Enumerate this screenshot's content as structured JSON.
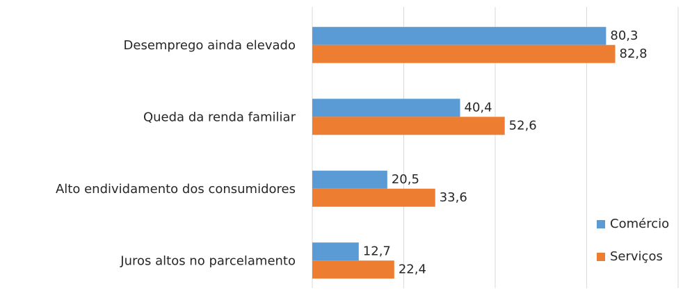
{
  "chart_data": {
    "type": "bar",
    "orientation": "horizontal",
    "categories": [
      "Desemprego ainda elevado",
      "Queda da renda familiar",
      "Alto endividamento dos consumidores",
      "Juros altos no parcelamento"
    ],
    "series": [
      {
        "name": "Comércio",
        "color": "#5b9bd5",
        "values": [
          80.3,
          40.4,
          20.5,
          12.7
        ],
        "value_labels": [
          "80,3",
          "40,4",
          "20,5",
          "12,7"
        ]
      },
      {
        "name": "Serviços",
        "color": "#ed7d31",
        "values": [
          82.8,
          52.6,
          33.6,
          22.4
        ],
        "value_labels": [
          "82,8",
          "52,6",
          "33,6",
          "22,4"
        ]
      }
    ],
    "xlim": [
      0,
      100
    ],
    "xticks": [
      0,
      25,
      50,
      75,
      100
    ],
    "grid": true,
    "legend": "right"
  }
}
